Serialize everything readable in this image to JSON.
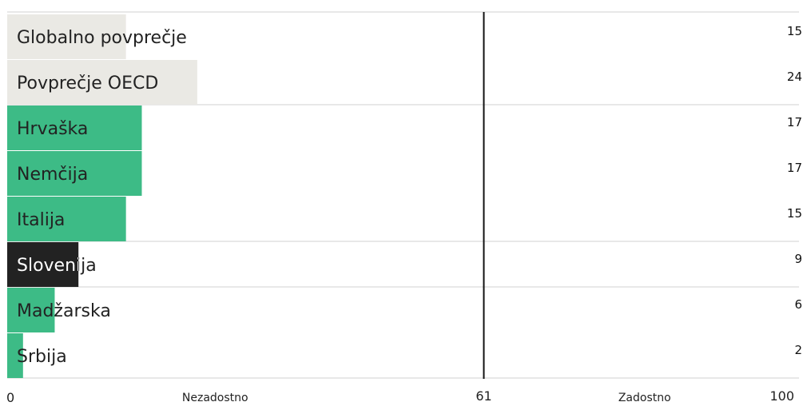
{
  "chart_data": {
    "type": "bar",
    "orientation": "horizontal",
    "categories": [
      "Globalno povprečje",
      "Povprečje OECD",
      "Hrvaška",
      "Nemčija",
      "Italija",
      "Slovenija",
      "Madžarska",
      "Srbija"
    ],
    "values": [
      15,
      24,
      17,
      17,
      15,
      9,
      6,
      2
    ],
    "xlim": [
      0,
      100
    ],
    "threshold": 61,
    "tick_labels": [
      "0",
      "61",
      "100"
    ],
    "zone_labels": [
      "Nezadostno",
      "Zadostno"
    ],
    "groups": [
      {
        "members": [
          0,
          1
        ],
        "color": "#eae9e4"
      },
      {
        "members": [
          2,
          3,
          4
        ],
        "color": "#3dbb86"
      },
      {
        "members": [
          5
        ],
        "color": "#222222"
      },
      {
        "members": [
          6,
          7
        ],
        "color": "#3dbb86"
      }
    ],
    "bar_colors": [
      "#eae9e4",
      "#eae9e4",
      "#3dbb86",
      "#3dbb86",
      "#3dbb86",
      "#222222",
      "#3dbb86",
      "#3dbb86"
    ],
    "label_text_colors": [
      "#222222",
      "#222222",
      "#222222",
      "#222222",
      "#222222",
      "#ffffff",
      "#222222",
      "#222222"
    ],
    "separator_color": "#d0d0d0",
    "threshold_color": "#111111",
    "grid": false,
    "legend": "none"
  }
}
